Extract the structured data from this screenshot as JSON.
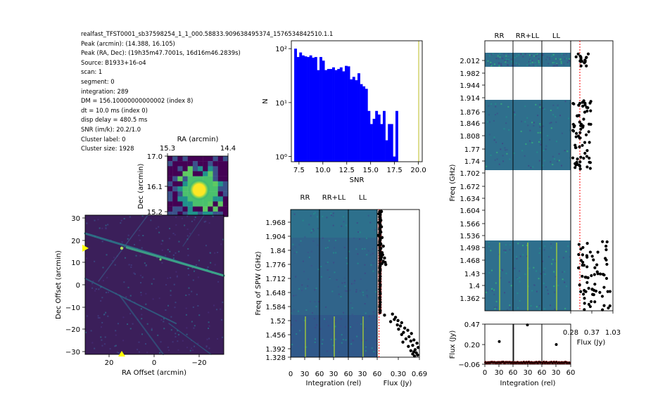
{
  "meta": {
    "lines": [
      "realfast_TFST0001_sb37598254_1_1_000.58833.909638495374_1576534842510.1.1",
      "Peak (arcmin): (14.388, 16.105)",
      "Peak (RA, Dec): (19h35m47.7001s, 16d16m46.2839s)",
      "Source: B1933+16-o4",
      "scan: 1",
      "segment: 0",
      "integration: 289",
      "DM = 156.10000000000002 (index 8)",
      "dt = 10.0 ms (index 0)",
      "disp delay = 480.5 ms",
      "SNR (im/k): 20.2/1.0",
      "Cluster label: 0",
      "Cluster size: 1928"
    ]
  },
  "colors": {
    "hist": "#0000ff",
    "threshold": "#ff0000",
    "marker": "#ffff00",
    "points": "#000000"
  },
  "chart_data": [
    {
      "id": "snr_hist",
      "type": "bar",
      "xlabel": "SNR",
      "ylabel": "N",
      "yscale": "log",
      "xlim": [
        6.7,
        20.4
      ],
      "ylim": [
        0.8,
        140
      ],
      "xticks": [
        "7.5",
        "10.0",
        "12.5",
        "15.0",
        "17.5",
        "20.0"
      ],
      "yticks": [
        "10⁰",
        "10¹",
        "10²"
      ],
      "bin_start": 7.0,
      "bin_width": 0.265,
      "values": [
        100,
        70,
        85,
        75,
        72,
        70,
        75,
        68,
        70,
        40,
        70,
        60,
        40,
        42,
        42,
        45,
        40,
        42,
        45,
        38,
        48,
        47,
        27,
        30,
        26,
        35,
        22,
        20,
        18,
        7,
        4,
        5,
        7,
        6,
        4,
        7,
        2,
        4,
        4,
        1,
        7
      ]
    },
    {
      "id": "cutout",
      "type": "heatmap",
      "title": "RA (arcmin)",
      "xlabel": "",
      "ylabel": "Dec (arcmin)",
      "xticks": [
        "15.3",
        "14.4"
      ],
      "yticks": [
        "17.0",
        "16.1",
        "15.2"
      ]
    },
    {
      "id": "image",
      "type": "heatmap",
      "xlabel": "RA Offset (arcmin)",
      "ylabel": "Dec Offset (arcmin)",
      "xlim": [
        31,
        -31
      ],
      "ylim": [
        -31,
        31
      ],
      "xticks": [
        "20",
        "0",
        "−20"
      ],
      "yticks": [
        "30",
        "20",
        "10",
        "0",
        "−10",
        "−20",
        "−30"
      ],
      "markers": [
        {
          "x": 31,
          "y": 16.1
        },
        {
          "x": 14.4,
          "y": -31
        }
      ]
    },
    {
      "id": "dynspec",
      "type": "heatmap",
      "panels": [
        "RR",
        "RR+LL",
        "LL"
      ],
      "xlabel": "Integration (rel)",
      "ylabel": "Freq of SPW (GHz)",
      "xticks": [
        "0",
        "30",
        "60",
        "30",
        "60",
        "30",
        "60"
      ],
      "yticks": [
        "1.968",
        "1.904",
        "1.84",
        "1.776",
        "1.712",
        "1.648",
        "1.584",
        "1.52",
        "1.456",
        "1.392",
        "1.328"
      ],
      "spectrum_xlabel": "Flux (Jy)",
      "spectrum_xticks": [
        "0.30",
        "0.69"
      ],
      "spectrum_xlim": [
        0,
        0.69
      ],
      "threshold_x": 0.03,
      "spectrum_points": [
        [
          0.04,
          2.0
        ],
        [
          0.07,
          2.001
        ],
        [
          0.05,
          1.995
        ],
        [
          0.03,
          1.99
        ],
        [
          0.05,
          1.985
        ],
        [
          0.04,
          1.975
        ],
        [
          0.05,
          1.97
        ],
        [
          0.06,
          1.96
        ],
        [
          0.03,
          1.95
        ],
        [
          0.05,
          1.94
        ],
        [
          0.07,
          1.93
        ],
        [
          0.04,
          1.92
        ],
        [
          0.05,
          1.91
        ],
        [
          0.06,
          1.905
        ],
        [
          0.04,
          1.895
        ],
        [
          0.02,
          1.89
        ],
        [
          0.08,
          1.88
        ],
        [
          0.05,
          1.87
        ],
        [
          0.04,
          1.86
        ],
        [
          0.06,
          1.85
        ],
        [
          0.03,
          1.845
        ],
        [
          0.1,
          1.84
        ],
        [
          0.06,
          1.83
        ],
        [
          0.04,
          1.82
        ],
        [
          0.08,
          1.81
        ],
        [
          0.05,
          1.805
        ],
        [
          0.09,
          1.8
        ],
        [
          0.07,
          1.79
        ],
        [
          0.12,
          1.785
        ],
        [
          0.06,
          1.78
        ],
        [
          0.1,
          1.77
        ],
        [
          0.13,
          1.765
        ],
        [
          0.08,
          1.76
        ],
        [
          0.14,
          1.755
        ],
        [
          0.05,
          1.75
        ],
        [
          0.04,
          1.74
        ],
        [
          0.05,
          1.73
        ],
        [
          0.04,
          1.72
        ],
        [
          0.05,
          1.7
        ],
        [
          0.04,
          1.68
        ],
        [
          0.05,
          1.66
        ],
        [
          0.04,
          1.64
        ],
        [
          0.05,
          1.62
        ],
        [
          0.04,
          1.6
        ],
        [
          0.05,
          1.58
        ],
        [
          0.04,
          1.56
        ],
        [
          0.05,
          1.54
        ],
        [
          0.25,
          1.525
        ],
        [
          0.12,
          1.52
        ],
        [
          0.3,
          1.51
        ],
        [
          0.28,
          1.5
        ],
        [
          0.34,
          1.495
        ],
        [
          0.22,
          1.49
        ],
        [
          0.4,
          1.485
        ],
        [
          0.33,
          1.475
        ],
        [
          0.38,
          1.47
        ],
        [
          0.45,
          1.46
        ],
        [
          0.35,
          1.455
        ],
        [
          0.5,
          1.45
        ],
        [
          0.43,
          1.44
        ],
        [
          0.56,
          1.435
        ],
        [
          0.4,
          1.43
        ],
        [
          0.52,
          1.42
        ],
        [
          0.47,
          1.41
        ],
        [
          0.6,
          1.405
        ],
        [
          0.55,
          1.4
        ],
        [
          0.42,
          1.395
        ],
        [
          0.65,
          1.39
        ],
        [
          0.58,
          1.38
        ],
        [
          0.51,
          1.375
        ],
        [
          0.67,
          1.37
        ],
        [
          0.62,
          1.36
        ],
        [
          0.55,
          1.355
        ],
        [
          0.6,
          1.35
        ],
        [
          0.64,
          1.345
        ],
        [
          0.58,
          1.34
        ],
        [
          0.66,
          1.335
        ],
        [
          0.61,
          1.33
        ]
      ]
    },
    {
      "id": "pol_dynspec",
      "type": "heatmap",
      "panels": [
        "RR",
        "RR+LL",
        "LL"
      ],
      "xlabel": "Integration (rel)",
      "ylabel": "Freq (GHz)",
      "xticks": [
        "0",
        "30",
        "60",
        "30",
        "60",
        "30",
        "60"
      ],
      "yticks": [
        "2.012",
        "1.982",
        "1.944",
        "1.914",
        "1.876",
        "1.846",
        "1.808",
        "1.77",
        "1.74",
        "1.702",
        "1.672",
        "1.634",
        "1.604",
        "1.566",
        "1.536",
        "1.498",
        "1.468",
        "1.43",
        "1.4",
        "1.362"
      ],
      "spectrum_xlabel": "Flux (Jy)",
      "spectrum_xticks": [
        "0.28",
        "0.37",
        "1.03"
      ],
      "threshold_x": 0.3
    },
    {
      "id": "lightcurve",
      "type": "scatter",
      "ylabel": "Flux (Jy)",
      "yticks": [
        "0.47",
        "0.20",
        "−0.06"
      ],
      "ylim": [
        -0.06,
        0.47
      ],
      "outliers": [
        {
          "panel": 0,
          "x": 30,
          "y": 0.24
        },
        {
          "panel": 1,
          "x": 30,
          "y": 0.46
        },
        {
          "panel": 2,
          "x": 30,
          "y": 0.2
        }
      ]
    }
  ]
}
